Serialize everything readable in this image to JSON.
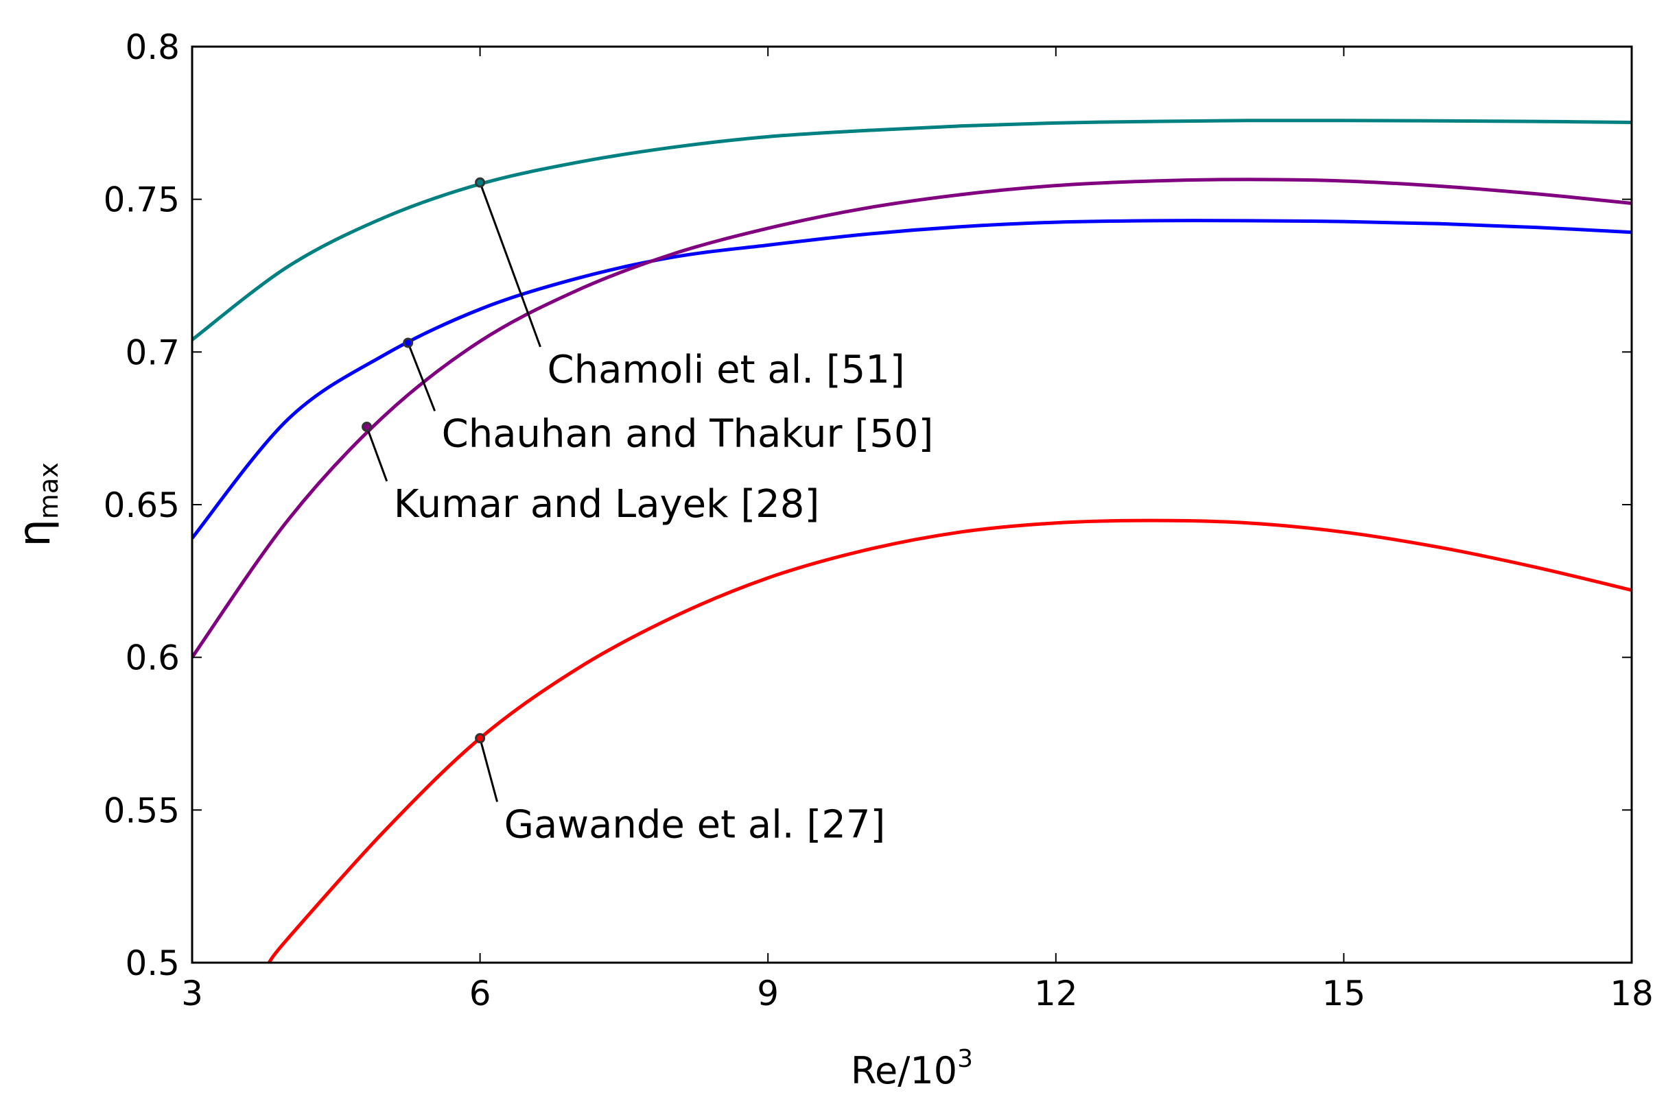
{
  "chart_data": {
    "type": "line",
    "title": "",
    "xlabel": "Re/10",
    "xlabel_sup": "3",
    "ylabel": "η",
    "ylabel_sub": "max",
    "xlim": [
      3,
      18
    ],
    "ylim": [
      0.5,
      0.8
    ],
    "xticks": [
      3,
      6,
      9,
      12,
      15,
      18
    ],
    "yticks": [
      0.5,
      0.55,
      0.6,
      0.65,
      0.7,
      0.75,
      0.8
    ],
    "ytick_labels": [
      "0.5",
      "0.55",
      "0.6",
      "0.65",
      "0.7",
      "0.75",
      "0.8"
    ],
    "grid": false,
    "series": [
      {
        "name": "Chamoli et al. [51]",
        "color": "#008080",
        "x": [
          3,
          4,
          5,
          6,
          7,
          8,
          9,
          10,
          11,
          12,
          13,
          14,
          15,
          16,
          17,
          18
        ],
        "y": [
          0.704,
          0.728,
          0.744,
          0.755,
          0.762,
          0.767,
          0.7705,
          0.7725,
          0.774,
          0.775,
          0.7755,
          0.7758,
          0.7758,
          0.7757,
          0.7755,
          0.7752
        ],
        "marker": {
          "x": 6,
          "y": 0.7555
        },
        "label_pos": {
          "x": 6.7,
          "y": 0.69
        }
      },
      {
        "name": "Chauhan and Thakur [50]",
        "color": "#0000ff",
        "x": [
          3,
          4,
          5,
          6,
          7,
          8,
          9,
          10,
          11,
          12,
          13,
          14,
          15,
          16,
          17,
          18
        ],
        "y": [
          0.639,
          0.678,
          0.699,
          0.714,
          0.724,
          0.731,
          0.735,
          0.7385,
          0.741,
          0.7425,
          0.743,
          0.743,
          0.7427,
          0.742,
          0.7408,
          0.7392
        ],
        "marker": {
          "x": 5.25,
          "y": 0.703
        },
        "label_pos": {
          "x": 5.6,
          "y": 0.669
        }
      },
      {
        "name": "Kumar and Layek [28]",
        "color": "#800080",
        "x": [
          3,
          4,
          5,
          6,
          7,
          8,
          9,
          10,
          11,
          12,
          13,
          14,
          15,
          16,
          17,
          18
        ],
        "y": [
          0.6,
          0.645,
          0.679,
          0.7035,
          0.72,
          0.732,
          0.7405,
          0.747,
          0.7515,
          0.7545,
          0.756,
          0.7565,
          0.756,
          0.7543,
          0.7518,
          0.7487
        ],
        "marker": {
          "x": 4.82,
          "y": 0.6755
        },
        "label_pos": {
          "x": 5.1,
          "y": 0.646
        }
      },
      {
        "name": "Gawande et al. [27]",
        "color": "#ff0000",
        "x": [
          3.8,
          4,
          5,
          6,
          7,
          8,
          9,
          10,
          11,
          12,
          13,
          14,
          15,
          16,
          17,
          18
        ],
        "y": [
          0.5,
          0.508,
          0.543,
          0.5735,
          0.596,
          0.613,
          0.626,
          0.635,
          0.641,
          0.644,
          0.6448,
          0.644,
          0.641,
          0.636,
          0.6295,
          0.622
        ],
        "marker": {
          "x": 6,
          "y": 0.5735
        },
        "label_pos": {
          "x": 6.25,
          "y": 0.541
        }
      }
    ]
  }
}
